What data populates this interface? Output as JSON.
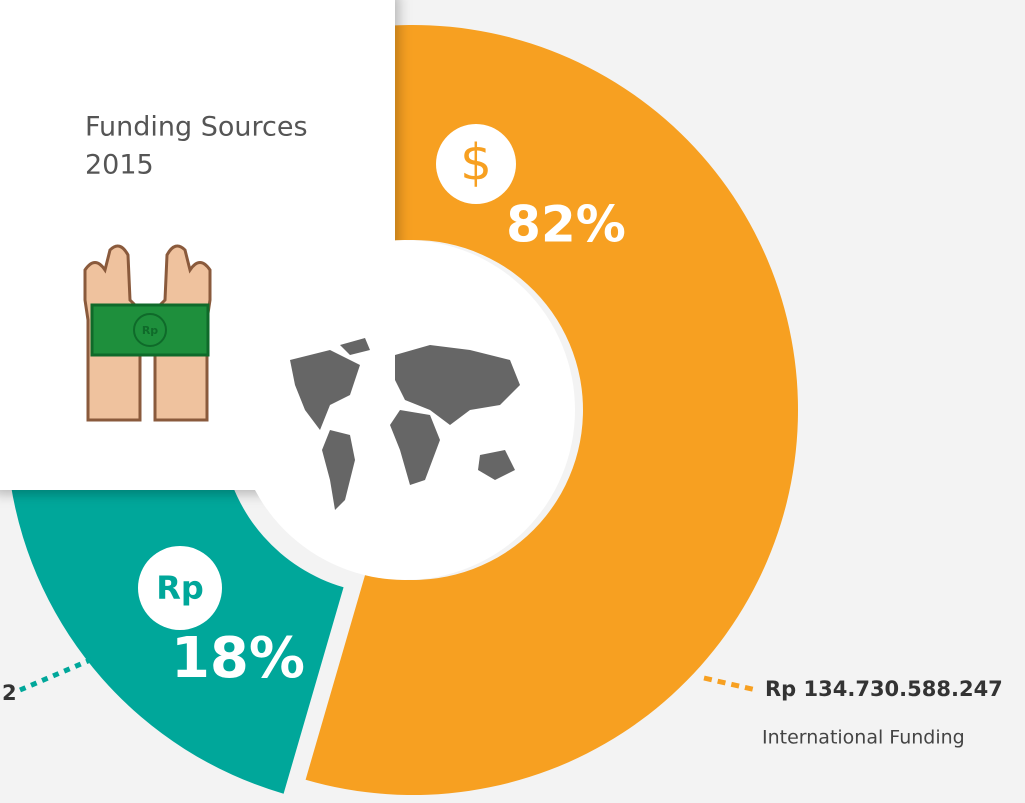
{
  "chart_data": {
    "type": "pie",
    "donut": true,
    "title": "Funding Sources",
    "subtitle": "2015",
    "values": [
      82,
      18
    ],
    "value_labels": [
      "82%",
      "18%"
    ],
    "colors": [
      "#f7a021",
      "#00a79a"
    ],
    "icons": [
      "$",
      "Rp"
    ],
    "bill_label": "Rp",
    "annotations": [
      {
        "amount": "Rp 134.730.588.247",
        "label": "International Funding"
      },
      {
        "amount": "2"
      }
    ]
  }
}
